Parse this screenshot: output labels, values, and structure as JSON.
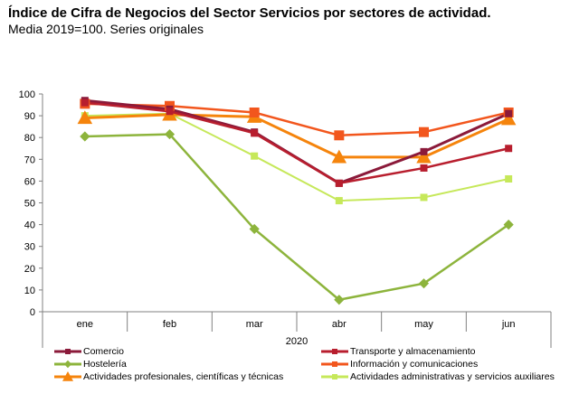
{
  "chart_data": {
    "type": "line",
    "title": "Índice de Cifra de Negocios del Sector Servicios por sectores de actividad.",
    "subtitle": "Media 2019=100. Series originales",
    "categories": [
      "ene",
      "feb",
      "mar",
      "abr",
      "may",
      "jun"
    ],
    "category_group_label": "2020",
    "xlabel": "",
    "ylabel": "",
    "ylim": [
      0,
      100
    ],
    "yticks": [
      0,
      10,
      20,
      30,
      40,
      50,
      60,
      70,
      80,
      90,
      100
    ],
    "grid": false,
    "legend_position": "bottom",
    "series": [
      {
        "name": "Comercio",
        "color": "#8B1A3A",
        "marker": "square",
        "values": [
          97,
          93,
          82.5,
          59,
          73.5,
          91
        ]
      },
      {
        "name": "Transporte y almacenamiento",
        "color": "#B81E2E",
        "marker": "square",
        "values": [
          96,
          92,
          82,
          59,
          66,
          75
        ]
      },
      {
        "name": "Hostelería",
        "color": "#8DB43C",
        "marker": "diamond",
        "values": [
          80.5,
          81.5,
          38,
          5.5,
          13,
          40
        ]
      },
      {
        "name": "Información y comunicaciones",
        "color": "#F2561D",
        "marker": "square",
        "values": [
          95.5,
          94.5,
          91.5,
          81,
          82.5,
          91.5
        ]
      },
      {
        "name": "Actividades profesionales, científicas y técnicas",
        "color": "#F5840C",
        "marker": "triangle",
        "values": [
          89,
          90.5,
          89.5,
          71,
          71,
          88.5
        ]
      },
      {
        "name": "Actividades administrativas y servicios auxiliares",
        "color": "#C6E85A",
        "marker": "square",
        "values": [
          90,
          91,
          71.5,
          51,
          52.5,
          61
        ]
      }
    ],
    "legend_order": [
      0,
      1,
      2,
      3,
      4,
      5
    ]
  }
}
